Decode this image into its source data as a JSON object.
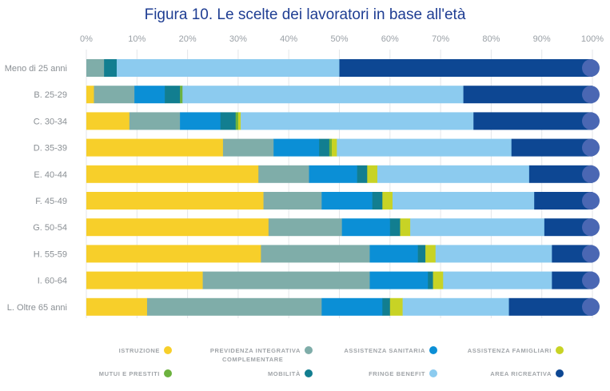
{
  "chart_data": {
    "type": "bar",
    "orientation": "horizontal",
    "stacked": true,
    "title": "Figura 10. Le scelte dei lavoratori in base all'età",
    "x_tick_labels": [
      "0%",
      "10%",
      "20%",
      "30%",
      "40%",
      "50%",
      "60%",
      "70%",
      "80%",
      "90%",
      "100%"
    ],
    "xlim": [
      0,
      100
    ],
    "grid": true,
    "legend_position": "bottom",
    "categories": [
      "Meno di 25 anni",
      "B. 25-29",
      "C. 30-34",
      "D. 35-39",
      "E. 40-44",
      "F. 45-49",
      "G. 50-54",
      "H. 55-59",
      "I. 60-64",
      "L. Oltre 65 anni"
    ],
    "series": [
      {
        "name": "ISTRUZIONE",
        "color": "#f7cf2a",
        "values": [
          0,
          1.5,
          8.5,
          27,
          34,
          35,
          36,
          34.5,
          23,
          12
        ]
      },
      {
        "name": "PREVIDENZA INTEGRATIVA COMPLEMENTARE",
        "color": "#7fada9",
        "values": [
          3.5,
          8,
          10,
          10,
          10,
          11.5,
          14.5,
          21.5,
          33,
          34.5
        ]
      },
      {
        "name": "ASSISTENZA SANITARIA",
        "color": "#0b8fd6",
        "values": [
          0,
          6,
          8,
          9,
          9.5,
          10,
          9.5,
          9.5,
          11.5,
          12
        ]
      },
      {
        "name": "MOBILITÀ",
        "color": "#127e90",
        "values": [
          2.5,
          3,
          3,
          2,
          2,
          2,
          2,
          1.5,
          1,
          1.5
        ]
      },
      {
        "name": "MUTUI E PRESTITI",
        "color": "#6cb23e",
        "values": [
          0,
          0.5,
          0.5,
          0.5,
          0,
          0,
          0,
          0,
          0,
          0
        ]
      },
      {
        "name": "ASSISTENZA FAMIGLIARI",
        "color": "#c8d325",
        "values": [
          0,
          0,
          0.5,
          1,
          2,
          2,
          2,
          2,
          2,
          2.5
        ]
      },
      {
        "name": "FRINGE BENEFIT",
        "color": "#8ccbef",
        "values": [
          44,
          55.5,
          46,
          34.5,
          30,
          28,
          26.5,
          23,
          21.5,
          21
        ]
      },
      {
        "name": "AREA RICREATIVA",
        "color": "#0d4793",
        "values": [
          50,
          25.5,
          23.5,
          16,
          12.5,
          11.5,
          9.5,
          8,
          8,
          16.5
        ]
      }
    ],
    "legend_order": [
      "ISTRUZIONE",
      "PREVIDENZA INTEGRATIVA COMPLEMENTARE",
      "ASSISTENZA SANITARIA",
      "ASSISTENZA FAMIGLIARI",
      "MUTUI E PRESTITI",
      "MOBILITÀ",
      "FRINGE BENEFIT",
      "AREA RICREATIVA"
    ],
    "legend_lines": {
      "PREVIDENZA INTEGRATIVA COMPLEMENTARE": [
        "PREVIDENZA INTEGRATIVA",
        "COMPLEMENTARE"
      ]
    },
    "end_cap_color": "#4a67b3"
  }
}
